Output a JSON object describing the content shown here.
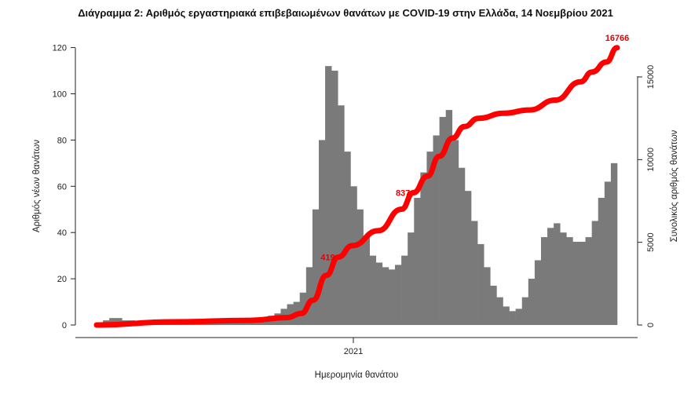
{
  "chart_data": {
    "type": "bar",
    "title": "Διάγραμμα 2: Αριθμός εργαστηριακά επιβεβαιωμένων θανάτων με COVID-19 στην Ελλάδα, 14 Νοεμβρίου 2021",
    "xlabel": "Ημερομηνία θανάτου",
    "ylabel": "Αριθμός νέων θανάτων",
    "y2label": "Συνολικός αριθμός θανάτων",
    "x_tick_labels": [
      "2021"
    ],
    "ylim": [
      0,
      125
    ],
    "yticks": [
      0,
      20,
      40,
      60,
      80,
      100,
      120
    ],
    "y2lim": [
      0,
      17500
    ],
    "y2ticks": [
      0,
      5000,
      10000,
      15000
    ],
    "bar_color": "#7a7a7a",
    "line_color": "#ff0000",
    "bars_weekly_approx": {
      "start": "2020-03-01",
      "end": "2021-11-14",
      "values": [
        1,
        2,
        3,
        3,
        2,
        2,
        1,
        1,
        1,
        1,
        1,
        1,
        1,
        1,
        1,
        1,
        1,
        1,
        1,
        1,
        2,
        2,
        2,
        2,
        2,
        3,
        3,
        4,
        5,
        7,
        9,
        10,
        14,
        25,
        50,
        80,
        112,
        110,
        95,
        75,
        60,
        50,
        38,
        30,
        27,
        25,
        24,
        26,
        30,
        40,
        55,
        66,
        75,
        82,
        90,
        93,
        80,
        68,
        58,
        45,
        35,
        25,
        17,
        12,
        8,
        6,
        7,
        12,
        20,
        28,
        38,
        42,
        44,
        40,
        38,
        36,
        36,
        38,
        45,
        55,
        62,
        70
      ]
    },
    "cumulative_series": {
      "name": "Συνολικός αριθμός θανάτων",
      "x": [
        "2020-03-01",
        "2020-06-01",
        "2020-09-01",
        "2020-10-15",
        "2020-11-01",
        "2020-11-15",
        "2020-12-01",
        "2020-12-15",
        "2021-01-01",
        "2021-02-01",
        "2021-03-01",
        "2021-03-15",
        "2021-04-01",
        "2021-04-15",
        "2021-05-01",
        "2021-05-15",
        "2021-06-01",
        "2021-07-01",
        "2021-08-01",
        "2021-09-01",
        "2021-10-01",
        "2021-10-15",
        "2021-11-01",
        "2021-11-14"
      ],
      "y": [
        0,
        190,
        280,
        450,
        700,
        1500,
        3000,
        4100,
        4800,
        5700,
        7000,
        8000,
        9000,
        10200,
        11300,
        12000,
        12500,
        12800,
        13000,
        13600,
        14700,
        15300,
        15900,
        16766
      ]
    },
    "annotations": [
      {
        "text": "419",
        "x": "2020-12-15",
        "y": 4100
      },
      {
        "text": "837",
        "x": "2021-03-15",
        "y": 8000
      },
      {
        "text": "16766",
        "x": "2021-11-14",
        "y": 16766
      }
    ]
  }
}
